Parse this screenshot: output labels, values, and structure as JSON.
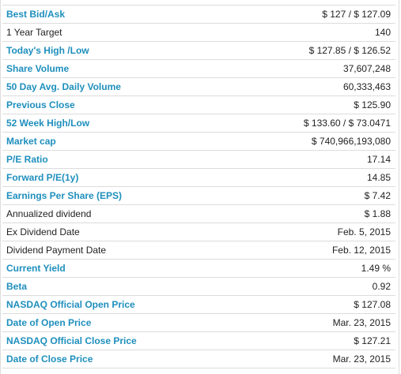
{
  "colors": {
    "label_blue": "#1e8fbd",
    "text_dark": "#222222",
    "row_border": "#dcdcdc"
  },
  "rows": [
    {
      "label": "Best Bid/Ask",
      "value": "$ 127 / $ 127.09",
      "style": "blue"
    },
    {
      "label": "1 Year Target",
      "value": "140",
      "style": "plain"
    },
    {
      "label": "Today's High /Low",
      "value": "$ 127.85 / $ 126.52",
      "style": "blue"
    },
    {
      "label": "Share Volume",
      "value": "37,607,248",
      "style": "blue"
    },
    {
      "label": "50 Day Avg. Daily Volume",
      "value": "60,333,463",
      "style": "blue"
    },
    {
      "label": "Previous Close",
      "value": "$ 125.90",
      "style": "blue"
    },
    {
      "label": "52 Week High/Low",
      "value": "$ 133.60 / $ 73.0471",
      "style": "blue"
    },
    {
      "label": "Market cap",
      "value": "$ 740,966,193,080",
      "style": "blue"
    },
    {
      "label": "P/E Ratio",
      "value": "17.14",
      "style": "blue"
    },
    {
      "label": "Forward P/E(1y)",
      "value": "14.85",
      "style": "blue"
    },
    {
      "label": "Earnings Per Share (EPS)",
      "value": "$ 7.42",
      "style": "blue"
    },
    {
      "label": "Annualized dividend",
      "value": "$ 1.88",
      "style": "plain"
    },
    {
      "label": "Ex Dividend Date",
      "value": "Feb. 5, 2015",
      "style": "plain"
    },
    {
      "label": "Dividend Payment Date",
      "value": "Feb. 12, 2015",
      "style": "plain"
    },
    {
      "label": "Current Yield",
      "value": "1.49 %",
      "style": "blue"
    },
    {
      "label": "Beta",
      "value": "0.92",
      "style": "blue"
    },
    {
      "label": "NASDAQ Official Open Price",
      "value": "$ 127.08",
      "style": "blue"
    },
    {
      "label": "Date of Open Price",
      "value": "Mar. 23, 2015",
      "style": "blue"
    },
    {
      "label": "NASDAQ Official Close Price",
      "value": "$ 127.21",
      "style": "blue"
    },
    {
      "label": "Date of Close Price",
      "value": "Mar. 23, 2015",
      "style": "blue"
    }
  ]
}
